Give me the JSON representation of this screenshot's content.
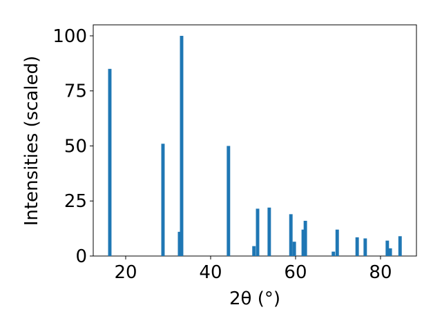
{
  "chart_data": {
    "type": "bar",
    "x_label": "2θ (°)",
    "y_label": "Intensities (scaled)",
    "x": [
      16.26,
      28.78,
      32.68,
      33.17,
      44.2,
      50.2,
      51.06,
      53.8,
      58.9,
      59.7,
      61.8,
      62.3,
      68.9,
      69.8,
      74.5,
      76.4,
      81.6,
      82.3,
      84.6
    ],
    "values": [
      85,
      51,
      11,
      100,
      50,
      4.5,
      21.5,
      22,
      19,
      6.5,
      12,
      16,
      2,
      12,
      8.5,
      8,
      7,
      3.5,
      9
    ],
    "color": "#1f77b4",
    "xlim": [
      12.36,
      88.46
    ],
    "xticks": [
      20,
      40,
      60,
      80
    ],
    "ylim": [
      0,
      105
    ],
    "yticks": [
      0,
      25,
      50,
      75,
      100
    ]
  }
}
